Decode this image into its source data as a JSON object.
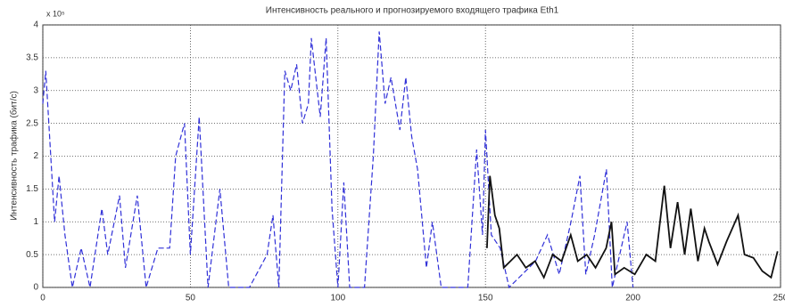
{
  "chart_data": {
    "type": "line",
    "title": "Интенсивность реального и прогнозируемого входящего трафика Eth1",
    "y_label": "Интенсивность трафика (бит/с)",
    "y_multiplier": "x 10⁵",
    "xlim": [
      0,
      250
    ],
    "xticks": [
      0,
      50,
      100,
      150,
      200,
      250
    ],
    "ylim": [
      0,
      4
    ],
    "yticks": [
      0,
      0.5,
      1,
      1.5,
      2,
      2.5,
      3,
      3.5,
      4
    ],
    "grid": true,
    "series": [
      {
        "color": "#3030d8",
        "dash": true,
        "x": [
          0,
          1,
          4,
          5.5,
          7.5,
          10,
          13,
          16,
          20,
          22,
          26,
          28,
          32,
          35,
          39,
          43,
          45,
          48,
          50,
          53,
          56,
          60,
          63,
          70,
          76,
          78,
          80,
          82,
          84,
          86,
          88,
          90,
          91,
          94,
          96,
          98,
          100,
          102,
          104,
          109,
          112,
          114,
          116,
          118,
          121,
          123,
          125,
          127,
          130,
          132,
          135,
          144,
          147,
          149,
          150,
          152,
          155,
          158,
          167,
          171,
          175,
          179,
          182,
          184,
          187,
          191,
          193,
          198,
          200
        ],
        "values": [
          2.8,
          3.3,
          1.0,
          1.7,
          0.8,
          0,
          0.6,
          0,
          1.2,
          0.5,
          1.4,
          0.3,
          1.4,
          0,
          0.6,
          0.6,
          2.0,
          2.5,
          0.5,
          2.6,
          0,
          1.5,
          0,
          0,
          0.5,
          1.1,
          0,
          3.3,
          3.0,
          3.4,
          2.5,
          2.8,
          3.8,
          2.6,
          3.8,
          1.2,
          0,
          1.6,
          0,
          0,
          2.0,
          3.9,
          2.8,
          3.2,
          2.4,
          3.2,
          2.3,
          1.8,
          0.3,
          1.0,
          0,
          0,
          2.1,
          0.8,
          2.4,
          0.8,
          0.6,
          0,
          0.4,
          0.8,
          0.2,
          1.0,
          1.7,
          0.2,
          0.8,
          1.8,
          0,
          1.0,
          0
        ]
      },
      {
        "color": "#111111",
        "dash": false,
        "x": [
          150.5,
          151.5,
          153.2,
          154.7,
          156.2,
          160.7,
          163.7,
          166.8,
          169.8,
          172.8,
          175.8,
          178.9,
          181.3,
          184.3,
          187.3,
          190.9,
          192.7,
          193.9,
          197,
          200.6,
          204.5,
          207.6,
          210.6,
          212.7,
          215.1,
          217.5,
          219.6,
          222,
          224.2,
          225.7,
          228.7,
          231.7,
          235.6,
          237.8,
          240.8,
          243.8,
          246.8,
          249
        ],
        "values": [
          0.6,
          1.7,
          1.1,
          0.9,
          0.3,
          0.5,
          0.3,
          0.4,
          0.15,
          0.5,
          0.4,
          0.8,
          0.4,
          0.5,
          0.3,
          0.6,
          1.0,
          0.2,
          0.3,
          0.2,
          0.5,
          0.4,
          1.55,
          0.6,
          1.3,
          0.5,
          1.2,
          0.4,
          0.9,
          0.7,
          0.35,
          0.7,
          1.1,
          0.5,
          0.45,
          0.25,
          0.15,
          0.55
        ]
      }
    ]
  }
}
